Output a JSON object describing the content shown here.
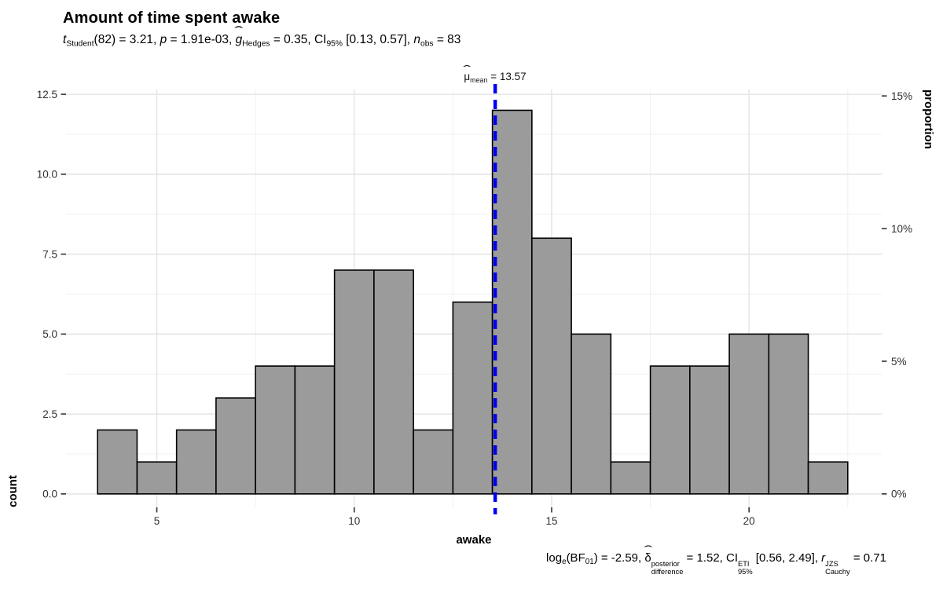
{
  "header": {
    "title": "Amount of time spent awake",
    "subtitle_segments": [
      {
        "t": "t",
        "s": "i"
      },
      {
        "t": "Student",
        "s": "sub"
      },
      {
        "t": "(82) = 3.21, ",
        "s": ""
      },
      {
        "t": "p",
        "s": "i"
      },
      {
        "t": " = 1.91e-03, ",
        "s": ""
      },
      {
        "t": "g",
        "s": "i hat"
      },
      {
        "t": "Hedges",
        "s": "sub"
      },
      {
        "t": " = 0.35, CI",
        "s": ""
      },
      {
        "t": "95%",
        "s": "sub"
      },
      {
        "t": " [0.13, 0.57], ",
        "s": ""
      },
      {
        "t": "n",
        "s": "i"
      },
      {
        "t": "obs",
        "s": "sub"
      },
      {
        "t": " = 83",
        "s": ""
      }
    ]
  },
  "caption_segments": [
    {
      "t": "log",
      "s": ""
    },
    {
      "t": "e",
      "s": "sub"
    },
    {
      "t": "(BF",
      "s": ""
    },
    {
      "t": "01",
      "s": "sub"
    },
    {
      "t": ") = -2.59, ",
      "s": ""
    },
    {
      "t": "δ",
      "s": "hat"
    },
    {
      "s": "stack",
      "sup": "posterior",
      "sb": "difference"
    },
    {
      "t": " = 1.52, CI",
      "s": ""
    },
    {
      "s": "stack",
      "sup": "ETI",
      "sb": "95%"
    },
    {
      "t": " [0.56, 2.49], ",
      "s": ""
    },
    {
      "t": "r",
      "s": "i"
    },
    {
      "s": "stack",
      "sup": "JZS",
      "sb": "Cauchy"
    },
    {
      "t": " = 0.71",
      "s": ""
    }
  ],
  "mean_label_segments": [
    {
      "t": "μ",
      "s": "hat"
    },
    {
      "t": "mean",
      "s": "sub"
    },
    {
      "t": " = 13.57",
      "s": ""
    }
  ],
  "chart_data": {
    "type": "histogram",
    "title": "Amount of time spent awake",
    "subtitle_text": "t_Student(82) = 3.21, p = 1.91e-03, g-hat_Hedges = 0.35, CI_95% [0.13, 0.57], n_obs = 83",
    "caption_text": "log_e(BF_01) = -2.59, delta-hat^posterior_difference = 1.52, CI^ETI_95% [0.56, 2.49], r^JZS_Cauchy = 0.71",
    "mean_label_text": "mu-hat_mean = 13.57",
    "xlabel": "awake",
    "ylabel": "count",
    "ylabel_right": "proportion",
    "n_obs": 83,
    "bin_start": 3.5,
    "bin_width": 1,
    "counts": [
      2,
      1,
      2,
      3,
      4,
      4,
      7,
      7,
      2,
      6,
      12,
      8,
      5,
      1,
      4,
      4,
      5,
      5,
      1
    ],
    "mean_line": {
      "x": 13.57,
      "color": "#0000f0",
      "dash": [
        12,
        8
      ],
      "width": 4.5
    },
    "x_axis": {
      "range": [
        2.7,
        23.36
      ],
      "ticks": [
        5,
        10,
        15,
        20
      ],
      "tick_labels": [
        "5",
        "10",
        "15",
        "20"
      ],
      "minor_ticks": [
        7.5,
        12.5,
        17.5,
        22.5
      ]
    },
    "y_axis": {
      "range": [
        -0.42,
        12.65
      ],
      "ticks": [
        0,
        2.5,
        5,
        7.5,
        10,
        12.5
      ],
      "tick_labels": [
        "0.0",
        "2.5",
        "5.0",
        "7.5",
        "10.0",
        "12.5"
      ],
      "minor_ticks": [
        1.25,
        3.75,
        6.25,
        8.75,
        11.25
      ]
    },
    "y2_axis": {
      "ticks_percent": [
        0,
        5,
        10,
        15
      ],
      "tick_labels": [
        "0%",
        "5%",
        "10%",
        "15%"
      ]
    },
    "grid": true,
    "legend": "none",
    "colors": {
      "bar_fill": "#9b9b9b",
      "bar_stroke": "#000000",
      "grid_major": "#e3e3e3",
      "grid_minor": "#f0f0f0",
      "tick": "#333333",
      "tick_label": "#303030",
      "axis_title": "#000000",
      "background": "#ffffff"
    }
  }
}
